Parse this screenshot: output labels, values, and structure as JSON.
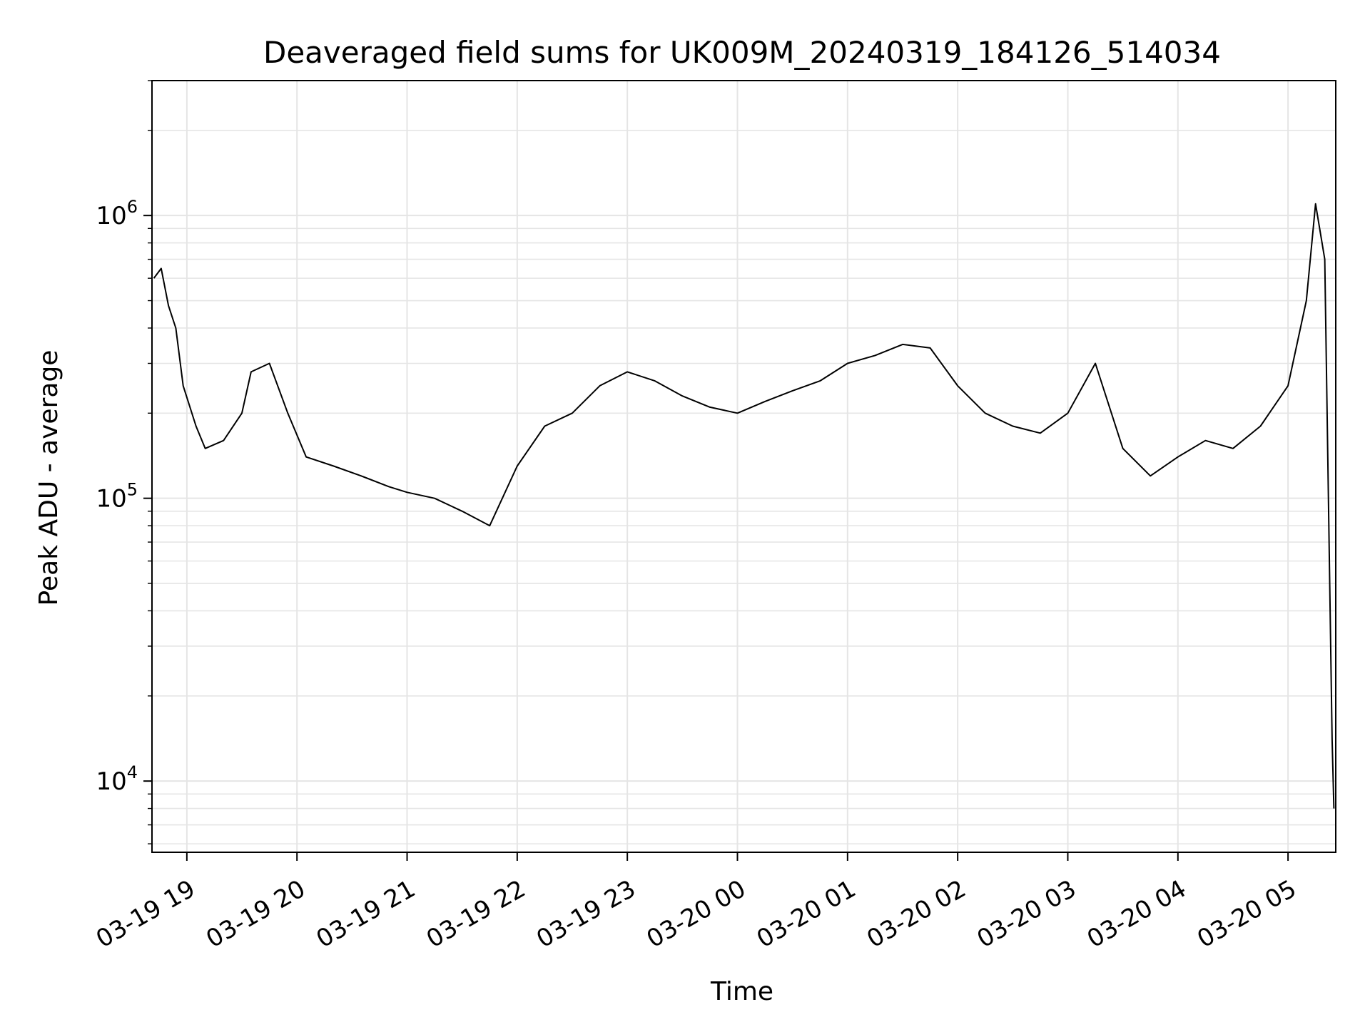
{
  "chart_data": {
    "type": "line",
    "title": "Deaveraged field sums for UK009M_20240319_184126_514034",
    "xlabel": "Time",
    "ylabel": "Peak ADU - average",
    "yscale": "log",
    "xlim": [
      "2024-03-19T18:41",
      "2024-03-20T05:26"
    ],
    "ylim": [
      5600,
      3000000
    ],
    "grid": true,
    "line_color": "#000000",
    "grid_color": "#e5e5e5",
    "x_ticks": [
      {
        "value": "2024-03-19T19:00",
        "label": "03-19 19"
      },
      {
        "value": "2024-03-19T20:00",
        "label": "03-19 20"
      },
      {
        "value": "2024-03-19T21:00",
        "label": "03-19 21"
      },
      {
        "value": "2024-03-19T22:00",
        "label": "03-19 22"
      },
      {
        "value": "2024-03-19T23:00",
        "label": "03-19 23"
      },
      {
        "value": "2024-03-20T00:00",
        "label": "03-20 00"
      },
      {
        "value": "2024-03-20T01:00",
        "label": "03-20 01"
      },
      {
        "value": "2024-03-20T02:00",
        "label": "03-20 02"
      },
      {
        "value": "2024-03-20T03:00",
        "label": "03-20 03"
      },
      {
        "value": "2024-03-20T04:00",
        "label": "03-20 04"
      },
      {
        "value": "2024-03-20T05:00",
        "label": "03-20 05"
      }
    ],
    "y_ticks": [
      {
        "value": 10000,
        "base": "10",
        "exp": "4"
      },
      {
        "value": 100000,
        "base": "10",
        "exp": "5"
      },
      {
        "value": 1000000,
        "base": "10",
        "exp": "6"
      }
    ],
    "series": [
      {
        "x": [
          "2024-03-19T18:42",
          "2024-03-19T18:46",
          "2024-03-19T18:50",
          "2024-03-19T18:54",
          "2024-03-19T18:58",
          "2024-03-19T19:05",
          "2024-03-19T19:10",
          "2024-03-19T19:20",
          "2024-03-19T19:30",
          "2024-03-19T19:35",
          "2024-03-19T19:45",
          "2024-03-19T19:55",
          "2024-03-19T20:05",
          "2024-03-19T20:20",
          "2024-03-19T20:35",
          "2024-03-19T20:50",
          "2024-03-19T21:00",
          "2024-03-19T21:15",
          "2024-03-19T21:30",
          "2024-03-19T21:45",
          "2024-03-19T22:00",
          "2024-03-19T22:15",
          "2024-03-19T22:30",
          "2024-03-19T22:45",
          "2024-03-19T23:00",
          "2024-03-19T23:15",
          "2024-03-19T23:30",
          "2024-03-19T23:45",
          "2024-03-20T00:00",
          "2024-03-20T00:15",
          "2024-03-20T00:30",
          "2024-03-20T00:45",
          "2024-03-20T01:00",
          "2024-03-20T01:15",
          "2024-03-20T01:30",
          "2024-03-20T01:45",
          "2024-03-20T02:00",
          "2024-03-20T02:15",
          "2024-03-20T02:30",
          "2024-03-20T02:45",
          "2024-03-20T03:00",
          "2024-03-20T03:15",
          "2024-03-20T03:30",
          "2024-03-20T03:45",
          "2024-03-20T04:00",
          "2024-03-20T04:15",
          "2024-03-20T04:30",
          "2024-03-20T04:45",
          "2024-03-20T05:00",
          "2024-03-20T05:10",
          "2024-03-20T05:15",
          "2024-03-20T05:20",
          "2024-03-20T05:24",
          "2024-03-20T05:25"
        ],
        "y": [
          600000,
          650000,
          480000,
          400000,
          250000,
          180000,
          150000,
          160000,
          200000,
          280000,
          300000,
          200000,
          140000,
          130000,
          120000,
          110000,
          105000,
          100000,
          90000,
          80000,
          130000,
          180000,
          200000,
          250000,
          280000,
          260000,
          230000,
          210000,
          200000,
          220000,
          240000,
          260000,
          300000,
          320000,
          350000,
          340000,
          250000,
          200000,
          180000,
          170000,
          200000,
          300000,
          150000,
          120000,
          140000,
          160000,
          150000,
          180000,
          250000,
          500000,
          1100000,
          700000,
          14000,
          8000
        ]
      }
    ]
  }
}
